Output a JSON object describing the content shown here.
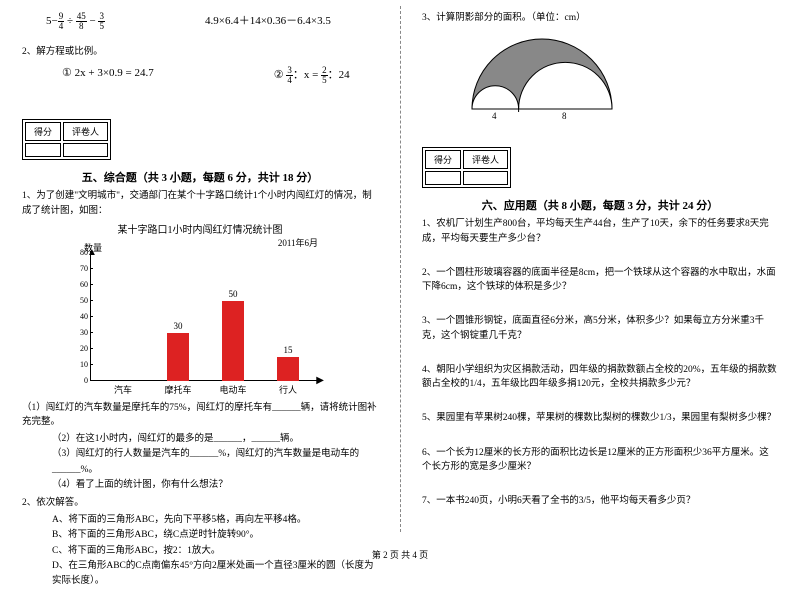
{
  "left": {
    "expr1_a": "5",
    "expr1_b": "4.9×6.4＋14×0.36－6.4×3.5",
    "q2_title": "2、解方程或比例。",
    "eq1": "① 2x + 3×0.9 = 24.7",
    "eq2_prefix": "②",
    "eq2_suffix": "：x =",
    "eq2_end": "：24",
    "section5": "五、综合题（共 3 小题，每题 6 分，共计 18 分）",
    "score_left": "得分",
    "score_right": "评卷人",
    "q5_1": "1、为了创建\"文明城市\"，交通部门在某个十字路口统计1个小时内闯红灯的情况，制成了统计图，如图：",
    "chart_title": "某十字路口1小时内闯红灯情况统计图",
    "chart_date": "2011年6月",
    "chart_ylabel": "数量",
    "chart_yticks": [
      "0",
      "5",
      "10",
      "15",
      "20",
      "25",
      "30",
      "35",
      "40",
      "45",
      "50",
      "55",
      "60",
      "65",
      "70",
      "75",
      "80"
    ],
    "chart_cats": [
      "汽车",
      "摩托车",
      "电动车",
      "行人"
    ],
    "chart_values": [
      null,
      30,
      50,
      15
    ],
    "chart_colors": [
      "#d22",
      "#d22",
      "#d22",
      "#d22"
    ],
    "q5_1_1": "（1）闯红灯的汽车数量是摩托车的75%，闯红灯的摩托车有______辆，请将统计图补充完整。",
    "q5_1_2": "（2）在这1小时内，闯红灯的最多的是______，______辆。",
    "q5_1_3": "（3）闯红灯的行人数量是汽车的______%，闯红灯的汽车数量是电动车的______%。",
    "q5_1_4": "（4）看了上面的统计图，你有什么想法？",
    "q5_2": "2、依次解答。",
    "q5_2_a": "A、将下面的三角形ABC，先向下平移5格，再向左平移4格。",
    "q5_2_b": "B、将下面的三角形ABC，绕C点逆时针旋转90°。",
    "q5_2_c": "C、将下面的三角形ABC，按2：1放大。",
    "q5_2_d": "D、在三角形ABC的C点南偏东45°方向2厘米处画一个直径3厘米的圆（长度为实际长度）。"
  },
  "right": {
    "q3": "3、计算阴影部分的面积。（单位：cm）",
    "fig_left": "4",
    "fig_right": "8",
    "score_left": "得分",
    "score_right": "评卷人",
    "section6": "六、应用题（共 8 小题，每题 3 分，共计 24 分）",
    "q6_1": "1、农机厂计划生产800台，平均每天生产44台，生产了10天，余下的任务要求8天完成，平均每天要生产多少台？",
    "q6_2": "2、一个圆柱形玻璃容器的底面半径是8cm，把一个铁球从这个容器的水中取出，水面下降6cm，这个铁球的体积是多少？",
    "q6_3": "3、一个圆锥形钢锭，底面直径6分米，高5分米，体积多少？如果每立方分米重3千克，这个钢锭重几千克？",
    "q6_4": "4、朝阳小学组织为灾区捐款活动，四年级的捐款数额占全校的20%，五年级的捐款数额占全校的1/4，五年级比四年级多捐120元，全校共捐款多少元？",
    "q6_5": "5、果园里有苹果树240棵，苹果树的棵数比梨树的棵数少1/3，果园里有梨树多少棵？",
    "q6_6": "6、一个长为12厘米的长方形的面积比边长是12厘米的正方形面积少36平方厘米。这个长方形的宽是多少厘米？",
    "q6_7": "7、一本书240页，小明6天看了全书的3/5，他平均每天看多少页？"
  },
  "footer": "第 2 页 共 4 页"
}
